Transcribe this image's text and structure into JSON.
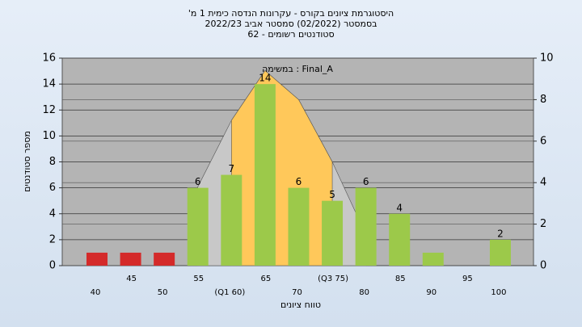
{
  "chart_data": {
    "type": "bar",
    "title": [
      "היסטוגרמת ציונים בקורס - עקרונות הנדסה כימית 1 מ'",
      "בסמסטר  (02/2022)  סמסטר אביב 2022/23",
      "סטודנטים רשומים - 62"
    ],
    "legend": "במשימה : Final_A",
    "xlabel": "טווח ציונים",
    "ylabel": "מספר סטודנטים",
    "categories": [
      "40",
      "45",
      "50",
      "55",
      "(Q1 60)",
      "65",
      "70",
      "(Q3 75)",
      "80",
      "85",
      "90",
      "95",
      "100"
    ],
    "values": [
      1,
      1,
      1,
      6,
      7,
      14,
      6,
      5,
      6,
      4,
      1,
      0,
      2
    ],
    "value_labels": [
      null,
      null,
      null,
      "6",
      "7",
      "14",
      "6",
      "5",
      "6",
      "4",
      null,
      null,
      "2"
    ],
    "colors": [
      "#d42a2a",
      "#d42a2a",
      "#d42a2a",
      "#9cc94a",
      "#9cc94a",
      "#9cc94a",
      "#9cc94a",
      "#9cc94a",
      "#9cc94a",
      "#9cc94a",
      "#9cc94a",
      "#9cc94a",
      "#9cc94a"
    ],
    "areas": [
      {
        "color": "#c8c8c8",
        "axis": "y2",
        "values": [
          null,
          null,
          null,
          3.8,
          7,
          9.4,
          8,
          5,
          1.5,
          null,
          null,
          null,
          null
        ]
      },
      {
        "color": "#ffc85a",
        "axis": "y2",
        "values": [
          null,
          null,
          null,
          null,
          7,
          9.4,
          8,
          5,
          null,
          null,
          null,
          null,
          null
        ]
      }
    ],
    "ylim": [
      0,
      16
    ],
    "yticks": [
      0,
      2,
      4,
      6,
      8,
      10,
      12,
      14,
      16
    ],
    "y2lim": [
      0,
      10
    ],
    "y2ticks": [
      0,
      2,
      4,
      6,
      8,
      10
    ],
    "grid": true
  }
}
